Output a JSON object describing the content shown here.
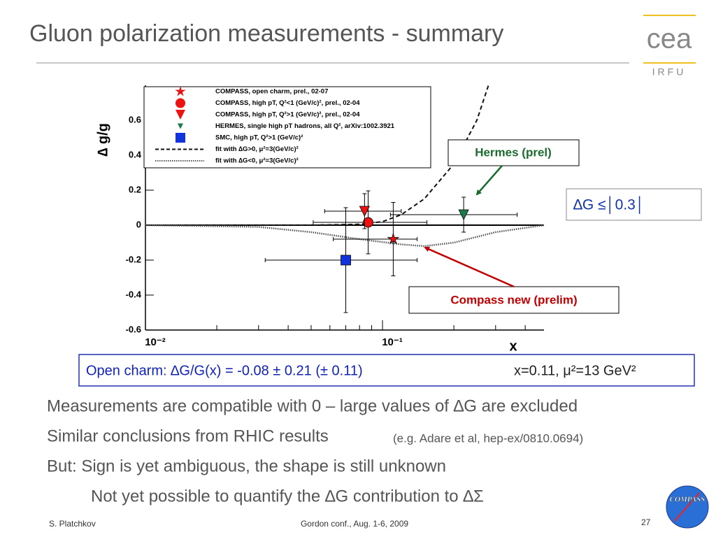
{
  "slide": {
    "title": "Gluon polarization measurements - summary",
    "logo_text": "cea",
    "logo_subtext": "IRFU",
    "limit_box": "∆G ≤│0.3│",
    "result_box": "Open charm: ∆G/G(x) = -0.08 ± 0.21 (± 0.11)",
    "result_kinematics": "x=0.11, μ²=13 GeV²",
    "bullets": [
      "Measurements are compatible with 0 – large values of ∆G are excluded",
      "Similar conclusions from RHIC results",
      "But: Sign is yet ambiguous, the shape is still unknown",
      "Not yet possible to quantify the ∆G contribution to ∆Σ"
    ],
    "bullet_note": "(e.g. Adare et al, hep-ex/0810.0694)",
    "footer_author": "S. Platchkov",
    "footer_event": "Gordon conf., Aug. 1-6, 2009",
    "page_number": "27",
    "compass_logo": "COMPASS"
  },
  "chart_data": {
    "type": "scatter",
    "xlabel": "x",
    "ylabel": "∆ g/g",
    "xscale": "log",
    "xlim": [
      0.01,
      0.48
    ],
    "ylim": [
      -0.6,
      0.8
    ],
    "xticks": [
      {
        "value": 0.01,
        "label": "10⁻²"
      },
      {
        "value": 0.1,
        "label": "10⁻¹"
      }
    ],
    "xminorticks": [
      0.02,
      0.03,
      0.04,
      0.05,
      0.06,
      0.07,
      0.08,
      0.09,
      0.2,
      0.3,
      0.4
    ],
    "yticks": [
      0.6,
      0.4,
      0.2,
      0,
      -0.2,
      -0.4,
      -0.6
    ],
    "legend": "upper left",
    "annotations": [
      {
        "text": "Hermes (prel)",
        "color": "#1a6b2e"
      },
      {
        "text": "Compass new (prelim)",
        "color": "#c00000"
      }
    ],
    "series": [
      {
        "name": "COMPASS, open charm, prel., 02-07",
        "color": "#ee1111",
        "marker": "star",
        "x": [
          0.111
        ],
        "values": [
          -0.08
        ],
        "errors": [
          0.21
        ],
        "x_low": [
          0.062
        ],
        "x_high": [
          0.14
        ]
      },
      {
        "name": "COMPASS, high pT, Q²<1 (GeV/c)², prel., 02-04",
        "color": "#ee1111",
        "marker": "circle",
        "x": [
          0.087
        ],
        "values": [
          0.016
        ],
        "errors": [
          0.18
        ],
        "x_low": [
          0.051
        ],
        "x_high": [
          0.154
        ]
      },
      {
        "name": "COMPASS, high pT, Q²>1 (GeV/c)², prel., 02-04",
        "color": "#ee1111",
        "marker": "triangle-down",
        "x": [
          0.084
        ],
        "values": [
          0.08
        ],
        "errors": [
          0.1
        ],
        "x_low": [
          0.057
        ],
        "x_high": [
          0.12
        ]
      },
      {
        "name": "HERMES, single high pT hadrons, all Q², arXiv:1002.3921",
        "color": "#1a7a4a",
        "marker": "triangle-down",
        "x": [
          0.22
        ],
        "values": [
          0.06
        ],
        "errors": [
          0.1
        ],
        "x_low": [
          0.108
        ],
        "x_high": [
          0.37
        ]
      },
      {
        "name": "SMC, high pT, Q²>1 (GeV/c)²",
        "color": "#1133dd",
        "marker": "square",
        "x": [
          0.07
        ],
        "values": [
          -0.2
        ],
        "errors": [
          0.3
        ],
        "x_low": [
          0.032
        ],
        "x_high": [
          0.14
        ]
      },
      {
        "name": "fit with ∆G>0, μ²=3(GeV/c)²",
        "color": "#111111",
        "line_style": "dashed",
        "x": [
          0.01,
          0.05,
          0.08,
          0.1,
          0.12,
          0.15,
          0.2,
          0.25,
          0.28
        ],
        "values": [
          0,
          0,
          0.005,
          0.02,
          0.06,
          0.15,
          0.35,
          0.6,
          0.8
        ]
      },
      {
        "name": "fit with ∆G<0, μ²=3(GeV/c)²",
        "color": "#555555",
        "line_style": "dotted",
        "x": [
          0.01,
          0.03,
          0.05,
          0.08,
          0.12,
          0.15,
          0.2,
          0.3,
          0.48
        ],
        "values": [
          0,
          -0.01,
          -0.04,
          -0.08,
          -0.11,
          -0.12,
          -0.1,
          -0.04,
          0
        ]
      }
    ]
  }
}
